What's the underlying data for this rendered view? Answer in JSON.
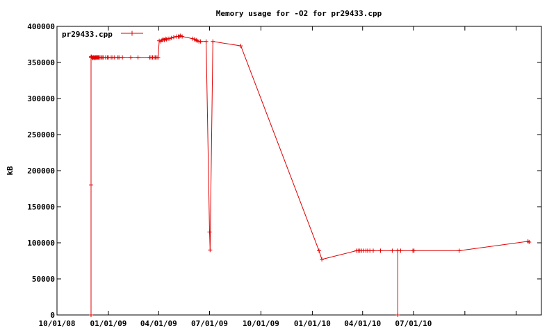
{
  "chart_data": {
    "type": "line",
    "title": "Memory usage for -O2 for pr29433.cpp",
    "xlabel": "",
    "ylabel": "kB",
    "ylim": [
      0,
      400000
    ],
    "xlim": [
      "2008-10-01",
      "2011-02-15"
    ],
    "yticks": [
      0,
      50000,
      100000,
      150000,
      200000,
      250000,
      300000,
      350000,
      400000
    ],
    "xticks": [
      {
        "date": "2008-10-01",
        "label": "10/01/08"
      },
      {
        "date": "2009-01-01",
        "label": "01/01/09"
      },
      {
        "date": "2009-04-01",
        "label": "04/01/09"
      },
      {
        "date": "2009-07-01",
        "label": "07/01/09"
      },
      {
        "date": "2009-10-01",
        "label": "10/01/09"
      },
      {
        "date": "2010-01-01",
        "label": "01/01/10"
      },
      {
        "date": "2010-04-01",
        "label": "04/01/10"
      },
      {
        "date": "2010-07-01",
        "label": "07/01/10"
      }
    ],
    "grid": false,
    "legend_position": "top-left",
    "color": "#e00000",
    "series": [
      {
        "name": "pr29433.cpp",
        "points": [
          [
            "2008-12-01",
            180000
          ],
          [
            "2008-12-01",
            358000
          ],
          [
            "2008-12-01",
            0
          ],
          [
            "2008-12-01",
            357000
          ],
          [
            "2008-12-02",
            358000
          ],
          [
            "2008-12-03",
            357000
          ],
          [
            "2008-12-04",
            356000
          ],
          [
            "2008-12-05",
            357000
          ],
          [
            "2008-12-06",
            357000
          ],
          [
            "2008-12-07",
            357000
          ],
          [
            "2008-12-08",
            356000
          ],
          [
            "2008-12-09",
            357000
          ],
          [
            "2008-12-10",
            357000
          ],
          [
            "2008-12-11",
            357000
          ],
          [
            "2008-12-12",
            357000
          ],
          [
            "2008-12-13",
            357000
          ],
          [
            "2008-12-14",
            357000
          ],
          [
            "2008-12-15",
            357000
          ],
          [
            "2008-12-17",
            357000
          ],
          [
            "2008-12-19",
            357000
          ],
          [
            "2008-12-21",
            357000
          ],
          [
            "2008-12-23",
            357000
          ],
          [
            "2008-12-27",
            357000
          ],
          [
            "2008-12-30",
            357000
          ],
          [
            "2009-01-01",
            357000
          ],
          [
            "2009-01-06",
            357000
          ],
          [
            "2009-01-09",
            357000
          ],
          [
            "2009-01-12",
            357000
          ],
          [
            "2009-01-18",
            357000
          ],
          [
            "2009-01-20",
            357000
          ],
          [
            "2009-01-26",
            357000
          ],
          [
            "2009-02-10",
            357000
          ],
          [
            "2009-02-23",
            357000
          ],
          [
            "2009-03-16",
            357000
          ],
          [
            "2009-03-18",
            357000
          ],
          [
            "2009-03-21",
            357000
          ],
          [
            "2009-03-24",
            357000
          ],
          [
            "2009-03-26",
            357000
          ],
          [
            "2009-03-29",
            357000
          ],
          [
            "2009-03-31",
            357000
          ],
          [
            "2009-04-02",
            380000
          ],
          [
            "2009-04-05",
            379000
          ],
          [
            "2009-04-07",
            381000
          ],
          [
            "2009-04-09",
            382000
          ],
          [
            "2009-04-11",
            381000
          ],
          [
            "2009-04-13",
            383000
          ],
          [
            "2009-04-15",
            382000
          ],
          [
            "2009-04-18",
            383000
          ],
          [
            "2009-04-21",
            383000
          ],
          [
            "2009-04-24",
            384000
          ],
          [
            "2009-04-28",
            385000
          ],
          [
            "2009-05-03",
            386000
          ],
          [
            "2009-05-06",
            386000
          ],
          [
            "2009-05-08",
            386000
          ],
          [
            "2009-05-10",
            387000
          ],
          [
            "2009-05-13",
            386000
          ],
          [
            "2009-06-01",
            383000
          ],
          [
            "2009-06-04",
            382000
          ],
          [
            "2009-06-07",
            381000
          ],
          [
            "2009-06-09",
            380000
          ],
          [
            "2009-06-12",
            379000
          ],
          [
            "2009-06-15",
            379000
          ],
          [
            "2009-06-25",
            379000
          ],
          [
            "2009-07-01",
            115000
          ],
          [
            "2009-07-02",
            90000
          ],
          [
            "2009-07-07",
            379000
          ],
          [
            "2009-08-26",
            373000
          ],
          [
            "2010-01-13",
            89000
          ],
          [
            "2010-01-18",
            77000
          ],
          [
            "2010-03-21",
            89000
          ],
          [
            "2010-03-24",
            89000
          ],
          [
            "2010-03-27",
            89000
          ],
          [
            "2010-03-30",
            89000
          ],
          [
            "2010-04-03",
            89000
          ],
          [
            "2010-04-07",
            89000
          ],
          [
            "2010-04-10",
            89000
          ],
          [
            "2010-04-14",
            89000
          ],
          [
            "2010-04-20",
            89000
          ],
          [
            "2010-05-03",
            89000
          ],
          [
            "2010-05-24",
            89000
          ],
          [
            "2010-06-03",
            89000
          ],
          [
            "2010-06-03",
            0
          ],
          [
            "2010-06-03",
            89000
          ],
          [
            "2010-06-08",
            89000
          ],
          [
            "2010-06-30",
            89000
          ],
          [
            "2010-07-02",
            89000
          ],
          [
            "2010-09-21",
            89000
          ],
          [
            "2011-01-22",
            102000
          ],
          [
            "2011-01-24",
            101000
          ]
        ]
      }
    ]
  }
}
